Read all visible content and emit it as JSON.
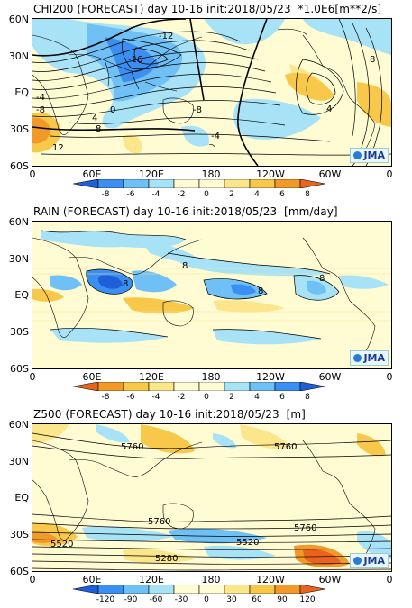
{
  "panels": [
    {
      "title": "CHI200 (FORECAST) day 10-16 init:2018/05/23  *1.0E6[m**2/s]",
      "colorbar": {
        "ticks": [
          "-8",
          "-6",
          "-4",
          "-2",
          "0",
          "2",
          "4",
          "6",
          "8"
        ],
        "colors": [
          "#1f5fd9",
          "#3a8ff0",
          "#6fc0f5",
          "#a7e2f7",
          "#fffbd3",
          "#fffbd3",
          "#fbe68c",
          "#f7c84a",
          "#f19a2a",
          "#e8641d"
        ]
      },
      "contour_labels": [
        "-12",
        "-16",
        "-8",
        "-4",
        "0",
        "4",
        "8",
        "12",
        "-4",
        "-8",
        "4",
        "8"
      ],
      "logo": "JMA"
    },
    {
      "title": "RAIN (FORECAST) day 10-16 init:2018/05/23  [mm/day]",
      "colorbar": {
        "ticks": [
          "-8",
          "-6",
          "-4",
          "-2",
          "0",
          "2",
          "4",
          "6",
          "8"
        ],
        "colors": [
          "#e8641d",
          "#f19a2a",
          "#f7c84a",
          "#fbe68c",
          "#fffbd3",
          "#fffbd3",
          "#a7e2f7",
          "#6fc0f5",
          "#3a8ff0",
          "#1f5fd9"
        ]
      },
      "contour_labels": [
        "8",
        "8",
        "8",
        "8"
      ],
      "logo": "JMA"
    },
    {
      "title": "Z500 (FORECAST) day 10-16 init:2018/05/23  [m]",
      "colorbar": {
        "ticks": [
          "-120",
          "-90",
          "-60",
          "-30",
          "0",
          "30",
          "60",
          "90",
          "120"
        ],
        "colors": [
          "#1f5fd9",
          "#3a8ff0",
          "#6fc0f5",
          "#a7e2f7",
          "#fffbd3",
          "#fffbd3",
          "#fbe68c",
          "#f7c84a",
          "#f19a2a",
          "#e8641d"
        ]
      },
      "contour_labels": [
        "5760",
        "5760",
        "5760",
        "5760",
        "5520",
        "5520",
        "5280"
      ],
      "logo": "JMA"
    }
  ],
  "lat_labels": [
    "60N",
    "30N",
    "EQ",
    "30S",
    "60S"
  ],
  "lon_labels": [
    "0",
    "60E",
    "120E",
    "180",
    "120W",
    "60W",
    "0"
  ]
}
